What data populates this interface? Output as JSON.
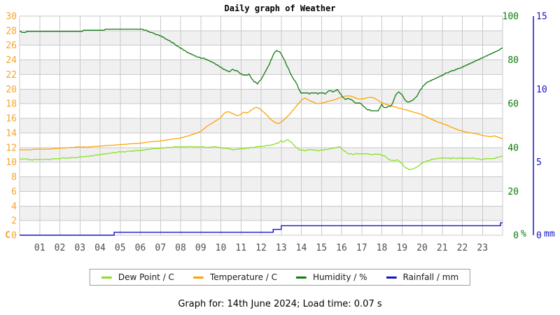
{
  "title": "Daily graph of Weather",
  "footer": "Graph for: 14th June 2024; Load time: 0.07 s",
  "legend": {
    "items": [
      {
        "label": "Dew Point / C",
        "color": "#8ae01e"
      },
      {
        "label": "Temperature / C",
        "color": "#ffa200"
      },
      {
        "label": "Humidity / %",
        "color": "#127a12"
      },
      {
        "label": "Rainfall / mm",
        "color": "#1414cc"
      }
    ]
  },
  "chart_data": {
    "type": "line",
    "title": "Daily graph of Weather",
    "grid": true,
    "band_color": "#f0f0f0",
    "grid_color": "#c9c9c9",
    "x_axis": {
      "range": [
        0,
        24
      ],
      "tick_hours": [
        1,
        2,
        3,
        4,
        5,
        6,
        7,
        8,
        9,
        10,
        11,
        12,
        13,
        14,
        15,
        16,
        17,
        18,
        19,
        20,
        21,
        22,
        23
      ],
      "tick_labels": [
        "01",
        "02",
        "03",
        "04",
        "05",
        "06",
        "07",
        "08",
        "09",
        "10",
        "11",
        "12",
        "13",
        "14",
        "15",
        "16",
        "17",
        "18",
        "19",
        "20",
        "21",
        "22",
        "23"
      ],
      "tick_color": "#4d4d4d"
    },
    "axes": {
      "temperature": {
        "side": "left",
        "unit": "C",
        "range": [
          0,
          30
        ],
        "ticks": [
          30,
          28,
          26,
          24,
          22,
          20,
          18,
          16,
          14,
          12,
          10,
          8,
          6,
          4,
          2,
          0
        ],
        "color": "#f6a42c"
      },
      "humidity": {
        "side": "right",
        "unit": "%",
        "range": [
          0,
          100
        ],
        "ticks": [
          100,
          80,
          60,
          40,
          20,
          0
        ],
        "color": "#0a7a0a"
      },
      "rainfall": {
        "side": "right-outer",
        "unit": "mm",
        "range": [
          0,
          15
        ],
        "ticks": [
          15,
          10,
          5,
          0
        ],
        "color": "#1414cc"
      }
    },
    "legend_position": "bottom",
    "series": [
      {
        "name": "Dew Point / C",
        "axis": "temperature",
        "color": "#8ae01e",
        "interp": "linear",
        "points": [
          [
            0,
            10.4
          ],
          [
            0.3,
            10.5
          ],
          [
            0.5,
            10.3
          ],
          [
            1,
            10.4
          ],
          [
            1.5,
            10.4
          ],
          [
            2,
            10.5
          ],
          [
            2.5,
            10.6
          ],
          [
            3,
            10.7
          ],
          [
            3.4,
            10.8
          ],
          [
            3.8,
            11
          ],
          [
            4.2,
            11.1
          ],
          [
            4.6,
            11.3
          ],
          [
            5,
            11.4
          ],
          [
            5.5,
            11.5
          ],
          [
            6,
            11.6
          ],
          [
            6.5,
            11.8
          ],
          [
            7,
            11.9
          ],
          [
            7.4,
            12
          ],
          [
            7.8,
            12.1
          ],
          [
            8.2,
            12.1
          ],
          [
            8.6,
            12.1
          ],
          [
            9,
            12.1
          ],
          [
            9.4,
            12
          ],
          [
            9.7,
            12.1
          ],
          [
            10,
            12
          ],
          [
            10.3,
            11.9
          ],
          [
            10.6,
            11.7
          ],
          [
            10.9,
            11.8
          ],
          [
            11.2,
            11.9
          ],
          [
            11.5,
            12
          ],
          [
            11.8,
            12.1
          ],
          [
            12.1,
            12.2
          ],
          [
            12.4,
            12.3
          ],
          [
            12.7,
            12.5
          ],
          [
            12.9,
            12.7
          ],
          [
            13,
            13
          ],
          [
            13.1,
            12.7
          ],
          [
            13.3,
            13.1
          ],
          [
            13.5,
            12.7
          ],
          [
            13.7,
            12.1
          ],
          [
            13.9,
            11.7
          ],
          [
            14.2,
            11.6
          ],
          [
            14.5,
            11.7
          ],
          [
            14.8,
            11.6
          ],
          [
            15.1,
            11.7
          ],
          [
            15.4,
            11.8
          ],
          [
            15.7,
            12
          ],
          [
            15.9,
            12.1
          ],
          [
            16.1,
            11.6
          ],
          [
            16.3,
            11.2
          ],
          [
            16.6,
            11.1
          ],
          [
            17,
            11.2
          ],
          [
            17.4,
            11.1
          ],
          [
            17.8,
            11.1
          ],
          [
            18.1,
            10.9
          ],
          [
            18.4,
            10.3
          ],
          [
            18.6,
            10.2
          ],
          [
            18.8,
            10.3
          ],
          [
            19,
            9.8
          ],
          [
            19.2,
            9.2
          ],
          [
            19.4,
            9
          ],
          [
            19.6,
            9.1
          ],
          [
            19.8,
            9.4
          ],
          [
            20,
            9.9
          ],
          [
            20.2,
            10.1
          ],
          [
            20.5,
            10.4
          ],
          [
            20.8,
            10.5
          ],
          [
            21.1,
            10.6
          ],
          [
            21.4,
            10.5
          ],
          [
            21.7,
            10.6
          ],
          [
            22,
            10.5
          ],
          [
            22.3,
            10.6
          ],
          [
            22.6,
            10.5
          ],
          [
            23,
            10.4
          ],
          [
            23.3,
            10.5
          ],
          [
            23.6,
            10.5
          ],
          [
            23.8,
            10.7
          ],
          [
            24,
            10.8
          ]
        ]
      },
      {
        "name": "Temperature / C",
        "axis": "temperature",
        "color": "#ffa200",
        "interp": "linear",
        "points": [
          [
            0,
            11.7
          ],
          [
            0.5,
            11.7
          ],
          [
            1,
            11.8
          ],
          [
            1.5,
            11.8
          ],
          [
            2,
            11.9
          ],
          [
            2.5,
            12
          ],
          [
            3,
            12.1
          ],
          [
            3.5,
            12.1
          ],
          [
            4,
            12.2
          ],
          [
            4.5,
            12.3
          ],
          [
            5,
            12.4
          ],
          [
            5.5,
            12.5
          ],
          [
            6,
            12.6
          ],
          [
            6.5,
            12.8
          ],
          [
            7,
            12.9
          ],
          [
            7.5,
            13.1
          ],
          [
            8,
            13.3
          ],
          [
            8.5,
            13.7
          ],
          [
            9,
            14.2
          ],
          [
            9.3,
            14.9
          ],
          [
            9.6,
            15.4
          ],
          [
            10,
            16.1
          ],
          [
            10.2,
            16.8
          ],
          [
            10.4,
            16.9
          ],
          [
            10.6,
            16.6
          ],
          [
            10.8,
            16.4
          ],
          [
            11,
            16.5
          ],
          [
            11.15,
            16.9
          ],
          [
            11.3,
            16.7
          ],
          [
            11.5,
            17.1
          ],
          [
            11.7,
            17.5
          ],
          [
            11.9,
            17.4
          ],
          [
            12.1,
            16.9
          ],
          [
            12.3,
            16.4
          ],
          [
            12.5,
            15.8
          ],
          [
            12.7,
            15.4
          ],
          [
            12.9,
            15.3
          ],
          [
            13.1,
            15.7
          ],
          [
            13.4,
            16.5
          ],
          [
            13.7,
            17.5
          ],
          [
            14,
            18.5
          ],
          [
            14.15,
            18.8
          ],
          [
            14.3,
            18.6
          ],
          [
            14.6,
            18.2
          ],
          [
            14.8,
            18
          ],
          [
            15,
            18.1
          ],
          [
            15.3,
            18.3
          ],
          [
            15.6,
            18.5
          ],
          [
            15.9,
            18.8
          ],
          [
            16.1,
            19
          ],
          [
            16.3,
            19.1
          ],
          [
            16.5,
            19
          ],
          [
            16.7,
            18.8
          ],
          [
            16.9,
            18.6
          ],
          [
            17.1,
            18.7
          ],
          [
            17.4,
            18.9
          ],
          [
            17.6,
            18.8
          ],
          [
            17.9,
            18.3
          ],
          [
            18.2,
            17.9
          ],
          [
            18.5,
            17.7
          ],
          [
            19,
            17.3
          ],
          [
            19.4,
            17
          ],
          [
            19.9,
            16.6
          ],
          [
            20.3,
            16.1
          ],
          [
            20.8,
            15.5
          ],
          [
            21.2,
            15.1
          ],
          [
            21.7,
            14.5
          ],
          [
            22.2,
            14.1
          ],
          [
            22.7,
            13.9
          ],
          [
            23.1,
            13.6
          ],
          [
            23.4,
            13.5
          ],
          [
            23.6,
            13.6
          ],
          [
            23.8,
            13.4
          ],
          [
            24,
            13.2
          ]
        ]
      },
      {
        "name": "Humidity / %",
        "axis": "humidity",
        "color": "#127a12",
        "interp": "linear",
        "points": [
          [
            0,
            93
          ],
          [
            0.2,
            92.5
          ],
          [
            0.4,
            93
          ],
          [
            0.7,
            92.8
          ],
          [
            1,
            93
          ],
          [
            1.5,
            93
          ],
          [
            2,
            93
          ],
          [
            2.5,
            93
          ],
          [
            3,
            93.2
          ],
          [
            3.4,
            93.5
          ],
          [
            3.7,
            93.8
          ],
          [
            4.2,
            93.8
          ],
          [
            4.6,
            94.2
          ],
          [
            5,
            94.3
          ],
          [
            5.5,
            94.3
          ],
          [
            6,
            94.2
          ],
          [
            6.3,
            93.3
          ],
          [
            6.6,
            92.3
          ],
          [
            6.9,
            91.3
          ],
          [
            7.2,
            90
          ],
          [
            7.5,
            88.5
          ],
          [
            7.8,
            86.5
          ],
          [
            8.1,
            84.8
          ],
          [
            8.4,
            83.2
          ],
          [
            8.7,
            81.8
          ],
          [
            9,
            81
          ],
          [
            9.3,
            80.2
          ],
          [
            9.6,
            78.8
          ],
          [
            9.9,
            77.2
          ],
          [
            10.2,
            75.5
          ],
          [
            10.4,
            74.6
          ],
          [
            10.6,
            75.6
          ],
          [
            10.8,
            75
          ],
          [
            11,
            73.6
          ],
          [
            11.2,
            73
          ],
          [
            11.4,
            73.4
          ],
          [
            11.6,
            70.6
          ],
          [
            11.8,
            69
          ],
          [
            11.9,
            70
          ],
          [
            12.1,
            72.6
          ],
          [
            12.3,
            76
          ],
          [
            12.5,
            80
          ],
          [
            12.65,
            83.4
          ],
          [
            12.8,
            84.2
          ],
          [
            12.95,
            83.6
          ],
          [
            13.1,
            81
          ],
          [
            13.3,
            77
          ],
          [
            13.5,
            73
          ],
          [
            13.7,
            70
          ],
          [
            13.9,
            66.5
          ],
          [
            14,
            64.6
          ],
          [
            14.2,
            65.2
          ],
          [
            14.4,
            64.6
          ],
          [
            14.6,
            65.2
          ],
          [
            14.8,
            64.6
          ],
          [
            15,
            65
          ],
          [
            15.2,
            64.6
          ],
          [
            15.4,
            66
          ],
          [
            15.6,
            65.4
          ],
          [
            15.8,
            66.6
          ],
          [
            16,
            63.6
          ],
          [
            16.2,
            62
          ],
          [
            16.35,
            62.6
          ],
          [
            16.5,
            61.6
          ],
          [
            16.7,
            60.3
          ],
          [
            16.9,
            60.6
          ],
          [
            17.1,
            58.6
          ],
          [
            17.3,
            57.3
          ],
          [
            17.5,
            56.8
          ],
          [
            17.7,
            56.5
          ],
          [
            17.85,
            57
          ],
          [
            18,
            60
          ],
          [
            18.1,
            58.3
          ],
          [
            18.3,
            58.6
          ],
          [
            18.5,
            59.2
          ],
          [
            18.7,
            64.5
          ],
          [
            18.85,
            65.3
          ],
          [
            19,
            64
          ],
          [
            19.15,
            61.5
          ],
          [
            19.3,
            60.6
          ],
          [
            19.5,
            61.3
          ],
          [
            19.7,
            63
          ],
          [
            19.9,
            66
          ],
          [
            20.1,
            68.6
          ],
          [
            20.3,
            70
          ],
          [
            20.6,
            71.4
          ],
          [
            20.9,
            72.6
          ],
          [
            21.2,
            74
          ],
          [
            21.5,
            75
          ],
          [
            21.8,
            76
          ],
          [
            22.1,
            77.2
          ],
          [
            22.4,
            78.4
          ],
          [
            22.7,
            79.6
          ],
          [
            23,
            81
          ],
          [
            23.3,
            82.2
          ],
          [
            23.6,
            83.4
          ],
          [
            23.8,
            84.4
          ],
          [
            24,
            85.6
          ]
        ]
      },
      {
        "name": "Rainfall / mm",
        "axis": "rainfall",
        "color": "#1414cc",
        "interp": "step",
        "points": [
          [
            0,
            0
          ],
          [
            4.6,
            0
          ],
          [
            4.7,
            0.2
          ],
          [
            12.5,
            0.2
          ],
          [
            12.6,
            0.4
          ],
          [
            12.9,
            0.4
          ],
          [
            13,
            0.65
          ],
          [
            23.8,
            0.65
          ],
          [
            23.9,
            0.85
          ],
          [
            24,
            0.85
          ]
        ]
      }
    ]
  }
}
